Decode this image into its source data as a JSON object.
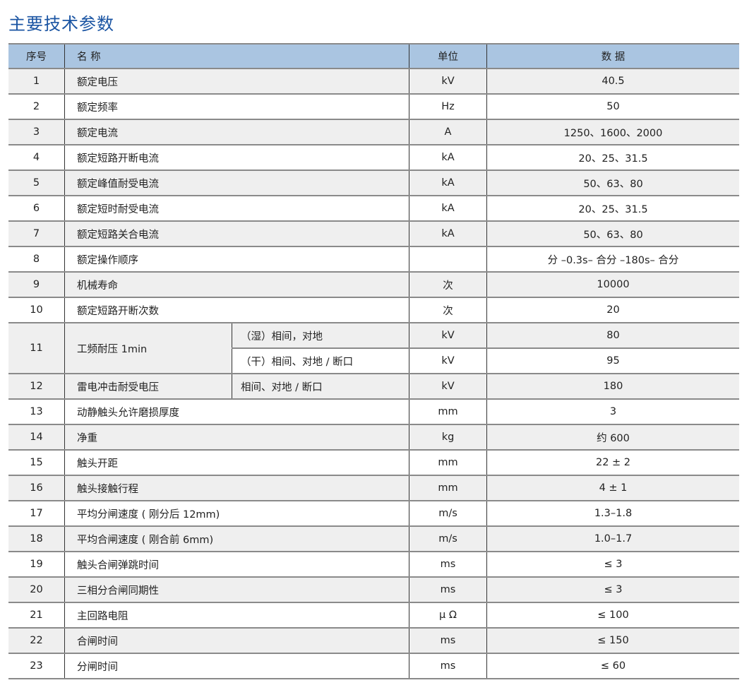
{
  "title": "主要技术参数",
  "header": {
    "seq": "序号",
    "name": "名 称",
    "unit": "单位",
    "data": "数 据"
  },
  "rows": [
    {
      "seq": "1",
      "name": "额定电压",
      "unit": "kV",
      "data": "40.5"
    },
    {
      "seq": "2",
      "name": "额定频率",
      "unit": "Hz",
      "data": "50"
    },
    {
      "seq": "3",
      "name": "额定电流",
      "unit": "A",
      "data": "1250、1600、2000"
    },
    {
      "seq": "4",
      "name": "额定短路开断电流",
      "unit": "kA",
      "data": "20、25、31.5"
    },
    {
      "seq": "5",
      "name": "额定峰值耐受电流",
      "unit": "kA",
      "data": "50、63、80"
    },
    {
      "seq": "6",
      "name": "额定短时耐受电流",
      "unit": "kA",
      "data": "20、25、31.5"
    },
    {
      "seq": "7",
      "name": "额定短路关合电流",
      "unit": "kA",
      "data": "50、63、80"
    },
    {
      "seq": "8",
      "name": "额定操作顺序",
      "unit": "",
      "data": "分 –0.3s– 合分 –180s– 合分"
    },
    {
      "seq": "9",
      "name": "机械寿命",
      "unit": "次",
      "data": "10000"
    },
    {
      "seq": "10",
      "name": "额定短路开断次数",
      "unit": "次",
      "data": "20"
    },
    {
      "seq": "11",
      "name": "工频耐压 1min",
      "sub": [
        {
          "cond": "（湿）相间，对地",
          "unit": "kV",
          "data": "80"
        },
        {
          "cond": "（干）相间、对地 / 断口",
          "unit": "kV",
          "data": "95"
        }
      ]
    },
    {
      "seq": "12",
      "name": "雷电冲击耐受电压",
      "cond": "相间、对地 / 断口",
      "unit": "kV",
      "data": "180"
    },
    {
      "seq": "13",
      "name": "动静触头允许磨损厚度",
      "unit": "mm",
      "data": "3"
    },
    {
      "seq": "14",
      "name": "净重",
      "unit": "kg",
      "data": "约 600"
    },
    {
      "seq": "15",
      "name": "触头开距",
      "unit": "mm",
      "data": "22 ± 2"
    },
    {
      "seq": "16",
      "name": "触头接触行程",
      "unit": "mm",
      "data": "4 ± 1"
    },
    {
      "seq": "17",
      "name": "平均分闸速度 ( 刚分后 12mm)",
      "unit": "m/s",
      "data": "1.3–1.8"
    },
    {
      "seq": "18",
      "name": "平均合闸速度 ( 刚合前 6mm)",
      "unit": "m/s",
      "data": "1.0–1.7"
    },
    {
      "seq": "19",
      "name": "触头合闸弹跳时间",
      "unit": "ms",
      "data": "≤ 3"
    },
    {
      "seq": "20",
      "name": "三相分合闸同期性",
      "unit": "ms",
      "data": "≤ 3"
    },
    {
      "seq": "21",
      "name": "主回路电阻",
      "unit": "μ Ω",
      "data": "≤ 100"
    },
    {
      "seq": "22",
      "name": "合闸时间",
      "unit": "ms",
      "data": "≤ 150"
    },
    {
      "seq": "23",
      "name": "分闸时间",
      "unit": "ms",
      "data": "≤ 60"
    }
  ]
}
